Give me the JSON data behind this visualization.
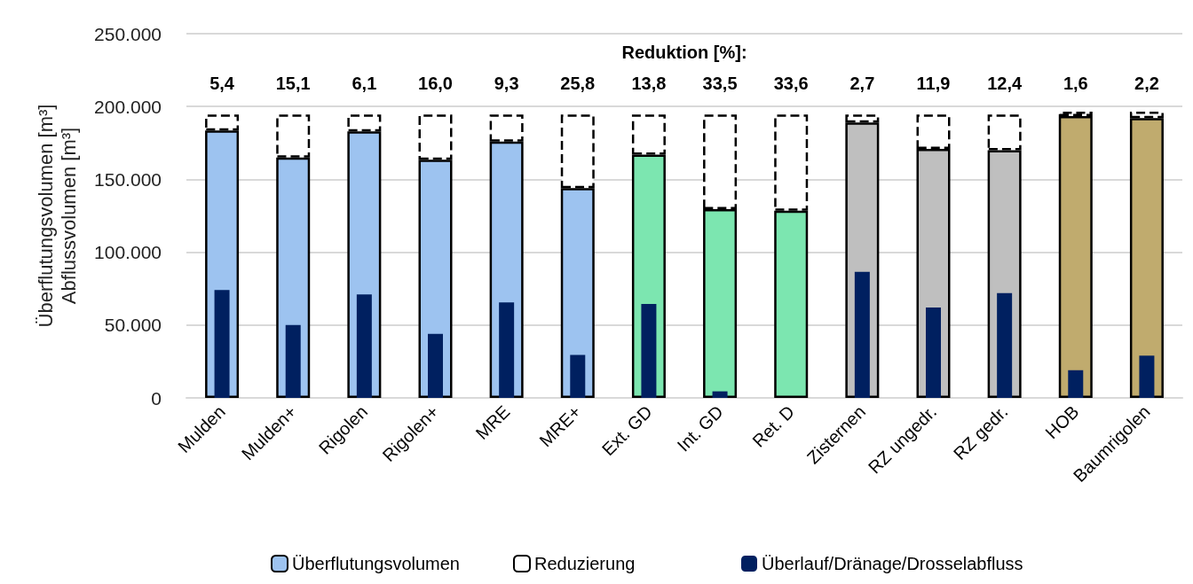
{
  "chart_data": [
    {
      "type": "bar",
      "stacked": true,
      "title": "Reduktion [%]:",
      "ylabel": "Überflutungsvolumen [m³]\nAbflussvolumen [m³]",
      "categories": [
        "Mulden",
        "Mulden+",
        "Rigolen",
        "Rigolen+",
        "MRE",
        "MRE+",
        "Ext. GD",
        "Int. GD",
        "Ret. D",
        "Zisternen",
        "RZ ungedr.",
        "RZ gedr.",
        "HOB",
        "Baumrigolen"
      ],
      "series": [
        {
          "name": "Überflutungsvolumen",
          "colors": [
            "#9dc3f0",
            "#9dc3f0",
            "#9dc3f0",
            "#9dc3f0",
            "#9dc3f0",
            "#9dc3f0",
            "#7ce6b0",
            "#7ce6b0",
            "#7ce6b0",
            "#bfbfbf",
            "#bfbfbf",
            "#bfbfbf",
            "#c0ab6e",
            "#c0ab6e"
          ],
          "values": [
            183500,
            165000,
            183000,
            163500,
            176000,
            144000,
            167000,
            129500,
            128500,
            189000,
            171000,
            170000,
            193500,
            192000
          ]
        },
        {
          "name": "Reduzierung",
          "color": "#ffffff",
          "line_style": "dashed",
          "values": [
            11000,
            29500,
            11500,
            31000,
            18500,
            50500,
            27500,
            65000,
            66000,
            5500,
            23500,
            24500,
            3000,
            4500
          ]
        }
      ],
      "annotations": [
        "5,4",
        "15,1",
        "6,1",
        "16,0",
        "9,3",
        "25,8",
        "13,8",
        "33,5",
        "33,6",
        "2,7",
        "11,9",
        "12,4",
        "1,6",
        "2,2"
      ],
      "ylim": [
        0,
        250000
      ],
      "yticks": [
        {
          "value": 0,
          "label": "0"
        },
        {
          "value": 50000,
          "label": "50.000"
        },
        {
          "value": 100000,
          "label": "100.000"
        },
        {
          "value": 150000,
          "label": "150.000"
        },
        {
          "value": 200000,
          "label": "200.000"
        },
        {
          "value": 250000,
          "label": "250.000"
        }
      ],
      "grid": "y",
      "legend": "bottom"
    },
    {
      "type": "bar",
      "categories": [
        null,
        null,
        null,
        null,
        null,
        null,
        null,
        null,
        null,
        null,
        null,
        null,
        null,
        null
      ],
      "series": [
        {
          "name": "Überlauf/Dränage/Drosselabfluss",
          "color": "#002060",
          "values": [
            74000,
            50000,
            71000,
            44000,
            65500,
            29500,
            64500,
            4500,
            null,
            86500,
            62000,
            72000,
            19000,
            29000
          ]
        }
      ],
      "ylim": [
        0,
        250000
      ],
      "tick_labels": false,
      "legend": "bottom"
    }
  ]
}
